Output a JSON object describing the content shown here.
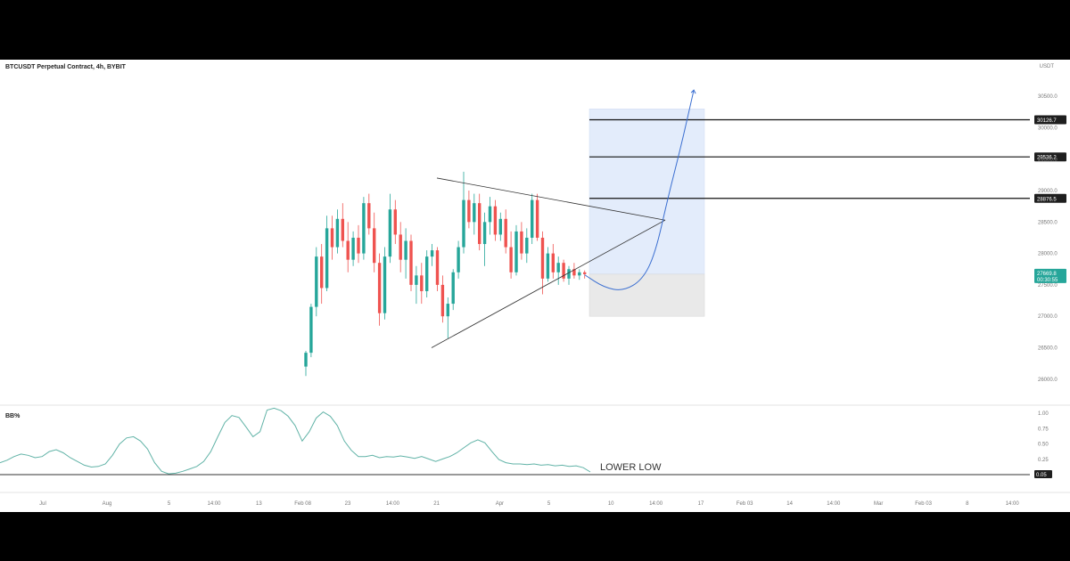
{
  "chart_title": "BTCUSDT Perpetual Contract, 4h, BYBIT",
  "currency": "USDT",
  "colors": {
    "up": "#26a69a",
    "down": "#ef5350",
    "wick": "#555555",
    "target_zone": "#e3ecfb",
    "stop_zone": "#e9e9e9",
    "price_tag": "#26a69a",
    "projection": "#3b6fd1",
    "indicator": "#61b3a7"
  },
  "chart_data": {
    "type": "candlestick",
    "title": "BTCUSDT Perpetual Contract, 4h, BYBIT",
    "ylim": [
      25600,
      30800
    ],
    "y_ticks": [
      {
        "value": 30500,
        "label": "30500.0"
      },
      {
        "value": 30000,
        "label": "30000.0"
      },
      {
        "value": 29500,
        "label": "29500.0"
      },
      {
        "value": 29000,
        "label": "29000.0"
      },
      {
        "value": 28500,
        "label": "28500.0"
      },
      {
        "value": 28000,
        "label": "28000.0"
      },
      {
        "value": 27500,
        "label": "27500.0"
      },
      {
        "value": 27000,
        "label": "27000.0"
      },
      {
        "value": 26500,
        "label": "26500.0"
      },
      {
        "value": 26000,
        "label": "26000.0"
      }
    ],
    "x_ticks": [
      {
        "pos": 0.04,
        "label": "Jul"
      },
      {
        "pos": 0.1,
        "label": "Aug"
      },
      {
        "pos": 0.158,
        "label": "5"
      },
      {
        "pos": 0.2,
        "label": "14:00"
      },
      {
        "pos": 0.242,
        "label": "13"
      },
      {
        "pos": 0.283,
        "label": "Feb 08"
      },
      {
        "pos": 0.325,
        "label": "23"
      },
      {
        "pos": 0.367,
        "label": "14:00"
      },
      {
        "pos": 0.408,
        "label": "21"
      },
      {
        "pos": 0.467,
        "label": "Apr"
      },
      {
        "pos": 0.513,
        "label": "5"
      },
      {
        "pos": 0.571,
        "label": "10"
      },
      {
        "pos": 0.613,
        "label": "14:00"
      },
      {
        "pos": 0.655,
        "label": "17"
      },
      {
        "pos": 0.696,
        "label": "Feb 03"
      },
      {
        "pos": 0.738,
        "label": "14"
      },
      {
        "pos": 0.779,
        "label": "14:00"
      },
      {
        "pos": 0.821,
        "label": "Mar"
      },
      {
        "pos": 0.863,
        "label": "Feb 03"
      },
      {
        "pos": 0.904,
        "label": "8"
      },
      {
        "pos": 0.946,
        "label": "14:00"
      }
    ],
    "current_price": {
      "value": 27669.8,
      "label": "27669.8",
      "sub": "00:30:55"
    },
    "levels": [
      {
        "value": 30126.7,
        "label": "30126.7"
      },
      {
        "value": 29536.2,
        "label": "29536.2"
      },
      {
        "value": 28876.5,
        "label": "28876.5"
      }
    ],
    "zones": {
      "target": {
        "top": 30300,
        "bottom": 27670
      },
      "stop": {
        "top": 27670,
        "bottom": 27000
      }
    },
    "triangle": {
      "upper": [
        [
          0.0,
          29200
        ],
        [
          1.0,
          28530
        ]
      ],
      "lower": [
        [
          0.0,
          26500
        ],
        [
          1.0,
          28530
        ]
      ]
    },
    "projection_curve": [
      [
        0,
        27660
      ],
      [
        6,
        27460
      ],
      [
        12,
        27400
      ],
      [
        18,
        27580
      ],
      [
        22,
        28000
      ],
      [
        26,
        28900
      ],
      [
        30,
        29700
      ],
      [
        34,
        30600
      ]
    ],
    "candles": [
      [
        26200,
        26450,
        26050,
        26420
      ],
      [
        26420,
        27200,
        26350,
        27150
      ],
      [
        27150,
        28100,
        27000,
        27950
      ],
      [
        27950,
        28150,
        27200,
        27450
      ],
      [
        27450,
        28600,
        27400,
        28400
      ],
      [
        28400,
        28600,
        27900,
        28100
      ],
      [
        28100,
        28700,
        28000,
        28550
      ],
      [
        28550,
        28800,
        28100,
        28200
      ],
      [
        28200,
        28500,
        27700,
        27900
      ],
      [
        27900,
        28350,
        27800,
        28250
      ],
      [
        28250,
        28450,
        27850,
        28000
      ],
      [
        28000,
        28900,
        27900,
        28800
      ],
      [
        28800,
        28950,
        28300,
        28400
      ],
      [
        28400,
        28650,
        27700,
        27850
      ],
      [
        27850,
        28000,
        26850,
        27050
      ],
      [
        27050,
        28100,
        26950,
        27950
      ],
      [
        27950,
        28950,
        27850,
        28700
      ],
      [
        28700,
        28850,
        28150,
        28300
      ],
      [
        28300,
        28500,
        27700,
        27900
      ],
      [
        27900,
        28400,
        27600,
        28200
      ],
      [
        28200,
        28300,
        27400,
        27500
      ],
      [
        27500,
        27800,
        27200,
        27650
      ],
      [
        27650,
        27850,
        27200,
        27400
      ],
      [
        27400,
        28050,
        27300,
        27950
      ],
      [
        27950,
        28150,
        27800,
        28050
      ],
      [
        28050,
        28100,
        27400,
        27500
      ],
      [
        27500,
        27650,
        26900,
        27000
      ],
      [
        27000,
        27300,
        26650,
        27200
      ],
      [
        27200,
        27750,
        27100,
        27700
      ],
      [
        27700,
        28200,
        27600,
        28100
      ],
      [
        28100,
        29300,
        28000,
        28850
      ],
      [
        28850,
        29000,
        28400,
        28500
      ],
      [
        28500,
        28950,
        28300,
        28800
      ],
      [
        28800,
        28950,
        28050,
        28150
      ],
      [
        28150,
        28650,
        27800,
        28500
      ],
      [
        28500,
        28900,
        28300,
        28750
      ],
      [
        28750,
        28850,
        28200,
        28300
      ],
      [
        28300,
        28650,
        28200,
        28550
      ],
      [
        28550,
        28700,
        28000,
        28100
      ],
      [
        28100,
        28350,
        27600,
        27700
      ],
      [
        27700,
        28450,
        27650,
        28350
      ],
      [
        28350,
        28500,
        27900,
        28000
      ],
      [
        28000,
        28400,
        27850,
        28250
      ],
      [
        28250,
        28950,
        28150,
        28850
      ],
      [
        28850,
        28950,
        28200,
        28250
      ],
      [
        28250,
        28350,
        27350,
        27600
      ],
      [
        27600,
        28100,
        27550,
        28000
      ],
      [
        28000,
        28150,
        27600,
        27700
      ],
      [
        27700,
        27950,
        27500,
        27850
      ],
      [
        27850,
        27900,
        27550,
        27600
      ],
      [
        27600,
        27800,
        27500,
        27750
      ],
      [
        27750,
        27850,
        27600,
        27650
      ],
      [
        27650,
        27750,
        27580,
        27700
      ],
      [
        27700,
        27730,
        27600,
        27669.8
      ]
    ],
    "indicator": {
      "label": "BB%",
      "ylim": [
        -0.05,
        1.1
      ],
      "y_ticks": [
        {
          "value": 1.0,
          "label": "1.00"
        },
        {
          "value": 0.75,
          "label": "0.75"
        },
        {
          "value": 0.5,
          "label": "0.50"
        },
        {
          "value": 0.25,
          "label": "0.25"
        },
        {
          "value": 0.0,
          "label": "0.00"
        }
      ],
      "current": {
        "value": 0.05,
        "label": "0.05"
      },
      "annotation": "LOWER LOW",
      "values": [
        0.2,
        0.24,
        0.3,
        0.34,
        0.32,
        0.28,
        0.3,
        0.38,
        0.41,
        0.36,
        0.28,
        0.22,
        0.16,
        0.13,
        0.14,
        0.18,
        0.32,
        0.5,
        0.6,
        0.62,
        0.55,
        0.42,
        0.2,
        0.06,
        0.02,
        0.03,
        0.06,
        0.1,
        0.14,
        0.22,
        0.38,
        0.62,
        0.85,
        0.96,
        0.93,
        0.78,
        0.62,
        0.7,
        1.05,
        1.08,
        1.04,
        0.95,
        0.8,
        0.55,
        0.7,
        0.92,
        1.02,
        0.95,
        0.8,
        0.55,
        0.4,
        0.3,
        0.3,
        0.32,
        0.28,
        0.3,
        0.29,
        0.31,
        0.29,
        0.27,
        0.3,
        0.26,
        0.22,
        0.26,
        0.3,
        0.36,
        0.44,
        0.52,
        0.57,
        0.52,
        0.38,
        0.25,
        0.2,
        0.18,
        0.18,
        0.17,
        0.18,
        0.16,
        0.17,
        0.15,
        0.16,
        0.14,
        0.15,
        0.12,
        0.05
      ]
    }
  }
}
